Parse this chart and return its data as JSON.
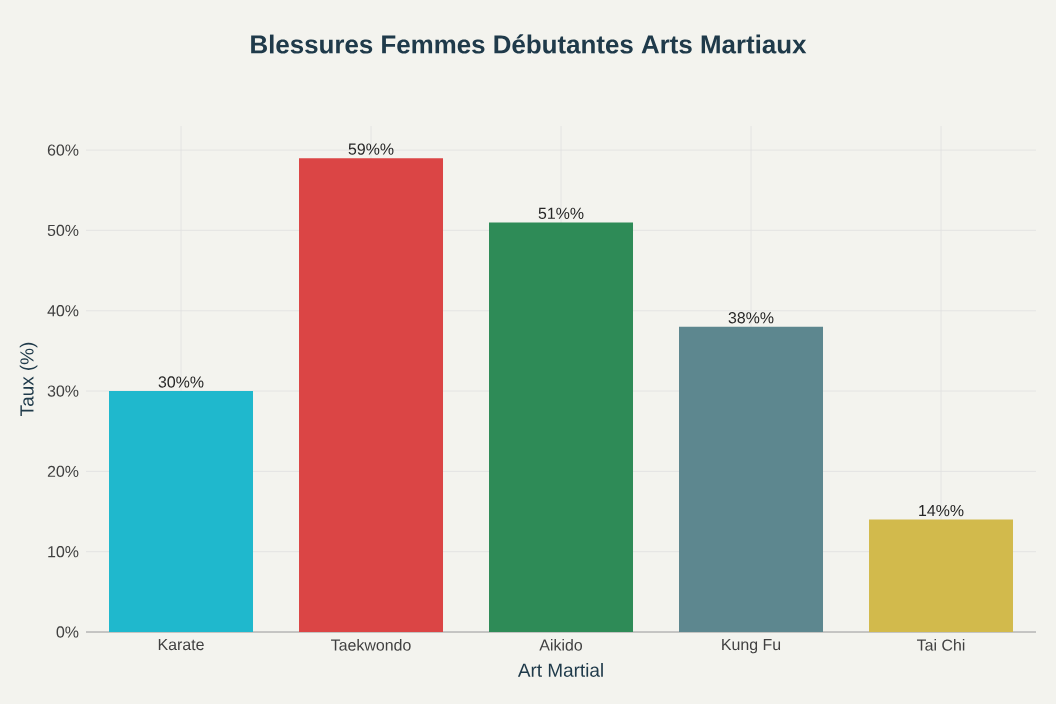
{
  "chart_data": {
    "type": "bar",
    "title": "Blessures Femmes Débutantes Arts Martiaux",
    "xlabel": "Art Martial",
    "ylabel": "Taux (%)",
    "categories": [
      "Karate",
      "Taekwondo",
      "Aikido",
      "Kung Fu",
      "Tai Chi"
    ],
    "values": [
      30,
      59,
      51,
      38,
      14
    ],
    "value_labels": [
      "30%%",
      "59%%",
      "51%%",
      "38%%",
      "14%%"
    ],
    "colors": [
      "#1fb8cd",
      "#db4545",
      "#2e8b57",
      "#5d878f",
      "#d2ba4c"
    ],
    "ylim": [
      0,
      63
    ],
    "yticks": [
      {
        "value": 0,
        "label": "0%"
      },
      {
        "value": 10,
        "label": "10%"
      },
      {
        "value": 20,
        "label": "20%"
      },
      {
        "value": 30,
        "label": "30%"
      },
      {
        "value": 40,
        "label": "40%"
      },
      {
        "value": 50,
        "label": "50%"
      },
      {
        "value": 60,
        "label": "60%"
      }
    ],
    "grid": true
  }
}
